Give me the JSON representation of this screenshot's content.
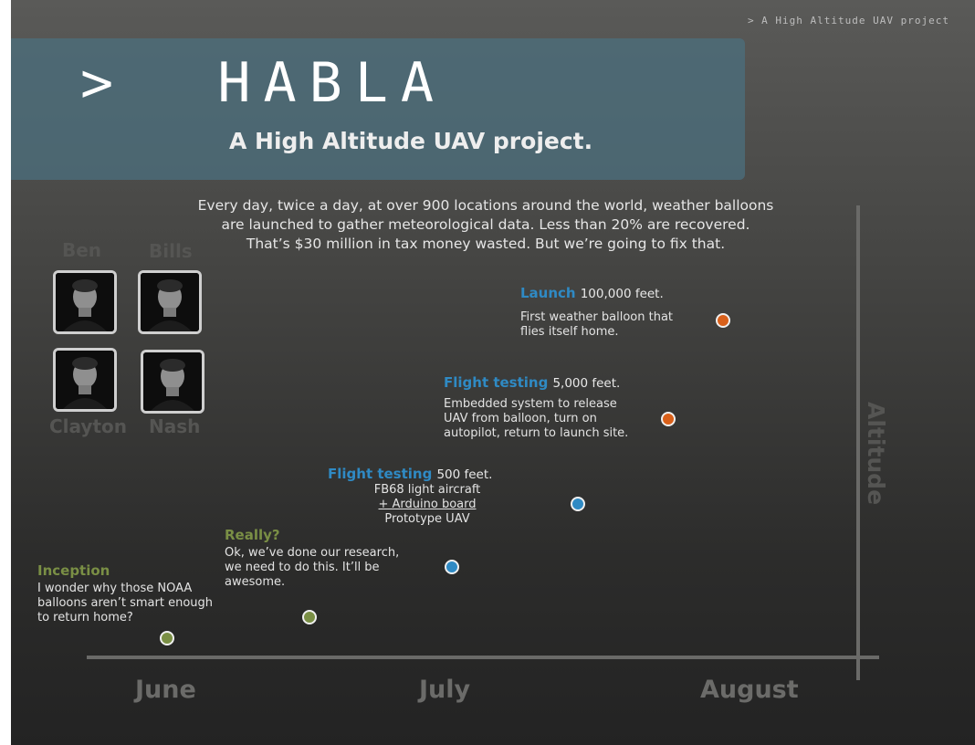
{
  "header": {
    "tagline": "> A High Altitude UAV project",
    "title": ">  HABLA",
    "subtitle": "A High Altitude UAV project."
  },
  "intro": [
    "Every day, twice a day, at over 900 locations around the world, weather balloons",
    "are launched to gather meteorological data.  Less than 20% are recovered.",
    "That’s $30 million in tax money wasted.  But we’re going to fix that."
  ],
  "team": {
    "top_names": [
      "Ben",
      "Bills"
    ],
    "bottom_names": [
      "Clayton",
      "Nash"
    ]
  },
  "events": [
    {
      "title": "Launch",
      "altitude": "100,000 feet.",
      "desc": [
        "First weather balloon that",
        "flies itself home."
      ]
    },
    {
      "title": "Flight testing",
      "altitude": "5,000 feet.",
      "desc": [
        "Embedded system to release",
        "UAV from balloon, turn on",
        "autopilot, return to launch site."
      ]
    },
    {
      "title": "Flight testing",
      "altitude": "500 feet.",
      "desc": [
        "FB68 light aircraft",
        "+ Arduino board",
        "Prototype UAV"
      ]
    },
    {
      "title": "Really?",
      "desc": [
        "Ok, we’ve done our research,",
        "we need to do this.  It’ll be",
        "awesome."
      ]
    },
    {
      "title": "Inception",
      "desc": [
        "I wonder why those NOAA",
        "balloons aren’t smart enough",
        "to return home?"
      ]
    }
  ],
  "timeline": {
    "months": [
      "June",
      "July",
      "August"
    ],
    "axis_label": "Altitude",
    "colors": {
      "green": "#7a8f45",
      "blue": "#2f8ac4",
      "orange": "#d9601a",
      "axis": "#6a6a68"
    }
  }
}
